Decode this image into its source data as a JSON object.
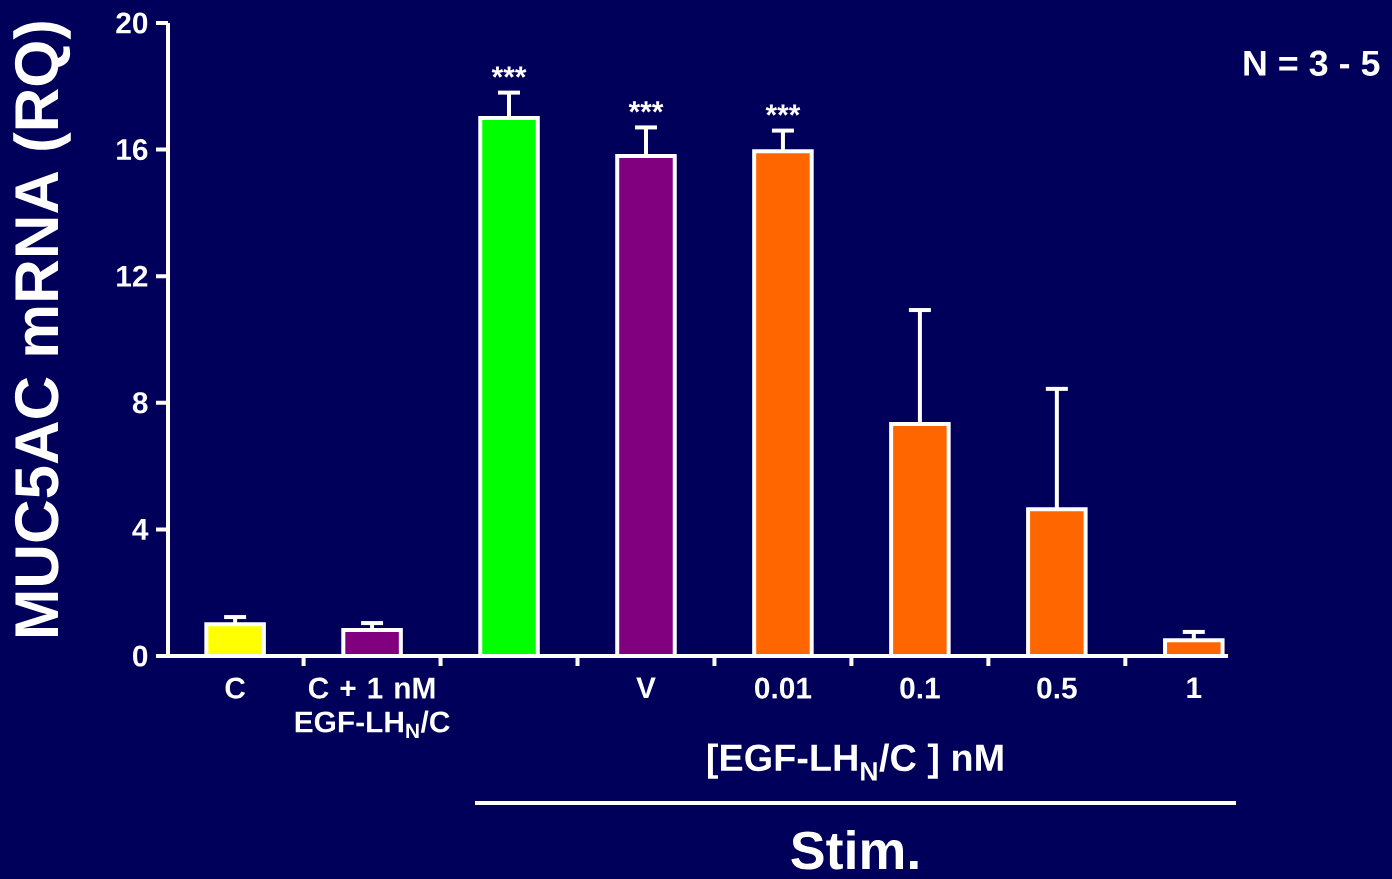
{
  "chart_data": {
    "type": "bar",
    "categories": [
      "C",
      "C + 1 nM EGF-LH$_{N}$/C",
      null,
      "V",
      "0.01",
      "0.1",
      "0.5",
      "1"
    ],
    "values": [
      1.0,
      0.82,
      17.0,
      15.8,
      15.95,
      7.33,
      4.64,
      0.5
    ],
    "errors": [
      0.23,
      0.22,
      0.8,
      0.9,
      0.65,
      3.6,
      3.8,
      0.26
    ],
    "colors": [
      "#ffff00",
      "#800080",
      "#00ff00",
      "#800080",
      "#ff6600",
      "#ff6600",
      "#ff6600",
      "#ff6600"
    ],
    "ylabel": "MUC5AC mRNA (RQ)",
    "xlabel": "[EGF-LH$_{N}$/C ] nM",
    "ylim": [
      0,
      20
    ],
    "yticks": [
      0,
      4,
      8,
      12,
      16,
      20
    ],
    "value_labels": [
      null,
      null,
      "***",
      "***",
      "***",
      null,
      null,
      null
    ],
    "annotations": [
      "N = 3 - 5",
      "Stim."
    ]
  }
}
